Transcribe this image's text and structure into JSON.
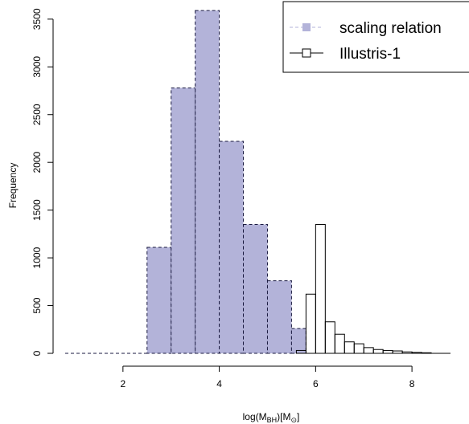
{
  "chart_data": {
    "type": "histogram",
    "xlabel": {
      "main": "log(M",
      "sub1": "BH",
      "mid": ")[M",
      "sub2": "⊙",
      "end": "]"
    },
    "ylabel": "Frequency",
    "xlim": [
      0.8,
      8.8
    ],
    "ylim": [
      0,
      3650
    ],
    "x_ticks": [
      2,
      4,
      6,
      8
    ],
    "y_ticks": [
      0,
      500,
      1000,
      1500,
      2000,
      2500,
      3000,
      3500
    ],
    "grid": false,
    "legend_position": "top-right",
    "series": [
      {
        "name": "scaling relation",
        "fill": "#b3b3d9",
        "stroke": "#1a1a40",
        "dashed": true,
        "bins": [
          {
            "x0": 0.8,
            "x1": 2.5,
            "count": 0
          },
          {
            "x0": 2.5,
            "x1": 3.0,
            "count": 1110
          },
          {
            "x0": 3.0,
            "x1": 3.5,
            "count": 2780
          },
          {
            "x0": 3.5,
            "x1": 4.0,
            "count": 3590
          },
          {
            "x0": 4.0,
            "x1": 4.5,
            "count": 2220
          },
          {
            "x0": 4.5,
            "x1": 5.0,
            "count": 1350
          },
          {
            "x0": 5.0,
            "x1": 5.5,
            "count": 760
          },
          {
            "x0": 5.5,
            "x1": 5.8,
            "count": 260
          }
        ]
      },
      {
        "name": "Illustris-1",
        "fill": "none",
        "stroke": "#000000",
        "dashed": false,
        "bins": [
          {
            "x0": 5.6,
            "x1": 5.8,
            "count": 30
          },
          {
            "x0": 5.8,
            "x1": 6.0,
            "count": 620
          },
          {
            "x0": 6.0,
            "x1": 6.2,
            "count": 1350
          },
          {
            "x0": 6.2,
            "x1": 6.4,
            "count": 330
          },
          {
            "x0": 6.4,
            "x1": 6.6,
            "count": 200
          },
          {
            "x0": 6.6,
            "x1": 6.8,
            "count": 120
          },
          {
            "x0": 6.8,
            "x1": 7.0,
            "count": 100
          },
          {
            "x0": 7.0,
            "x1": 7.2,
            "count": 60
          },
          {
            "x0": 7.2,
            "x1": 7.4,
            "count": 40
          },
          {
            "x0": 7.4,
            "x1": 7.6,
            "count": 30
          },
          {
            "x0": 7.6,
            "x1": 7.8,
            "count": 25
          },
          {
            "x0": 7.8,
            "x1": 8.0,
            "count": 15
          },
          {
            "x0": 8.0,
            "x1": 8.2,
            "count": 10
          },
          {
            "x0": 8.2,
            "x1": 8.4,
            "count": 6
          }
        ]
      }
    ]
  }
}
